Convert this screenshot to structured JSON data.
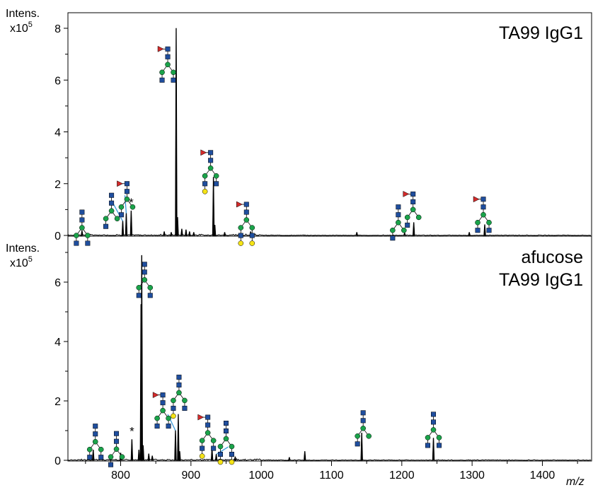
{
  "colors": {
    "trace": "#000000",
    "glcnac_blue": "#1f4e9e",
    "mannose_green": "#1aa34a",
    "galactose_yellow": "#f5e316",
    "fucose_red": "#d42a2a",
    "leader_line": "#3a9ad9"
  },
  "chart_data": [
    {
      "type": "line",
      "title": "TA99 IgG1",
      "ylabel": "Intens.",
      "yunit": "x10",
      "yunit_exp": "5",
      "xlim": [
        725,
        1470
      ],
      "ylim": [
        0,
        8.0
      ],
      "yticks": [
        0,
        2,
        4,
        6,
        8
      ],
      "peaks": [
        {
          "x": 745,
          "y": 0.18
        },
        {
          "x": 803,
          "y": 0.55
        },
        {
          "x": 808,
          "y": 0.85
        },
        {
          "x": 815,
          "y": 0.95
        },
        {
          "x": 862,
          "y": 0.15
        },
        {
          "x": 872,
          "y": 0.12
        },
        {
          "x": 879,
          "y": 8.0
        },
        {
          "x": 881,
          "y": 0.7
        },
        {
          "x": 887,
          "y": 0.25
        },
        {
          "x": 893,
          "y": 0.22
        },
        {
          "x": 898,
          "y": 0.15
        },
        {
          "x": 904,
          "y": 0.12
        },
        {
          "x": 932,
          "y": 2.25
        },
        {
          "x": 934,
          "y": 0.4
        },
        {
          "x": 948,
          "y": 0.12
        },
        {
          "x": 985,
          "y": 0.15
        },
        {
          "x": 1136,
          "y": 0.12
        },
        {
          "x": 1204,
          "y": 0.1
        },
        {
          "x": 1217,
          "y": 0.5
        },
        {
          "x": 1296,
          "y": 0.12
        },
        {
          "x": 1318,
          "y": 0.42
        }
      ],
      "annotations": [
        {
          "text": "*",
          "x": 815
        }
      ]
    },
    {
      "type": "line",
      "title": "afucose\nTA99 IgG1",
      "ylabel": "Intens.",
      "yunit": "x10",
      "yunit_exp": "5",
      "xlim": [
        725,
        1470
      ],
      "ylim": [
        0,
        7.0
      ],
      "yticks": [
        0,
        2,
        4,
        6
      ],
      "peaks": [
        {
          "x": 761,
          "y": 0.35
        },
        {
          "x": 800,
          "y": 0.25
        },
        {
          "x": 816,
          "y": 0.7
        },
        {
          "x": 826,
          "y": 0.35
        },
        {
          "x": 829,
          "y": 5.25
        },
        {
          "x": 830,
          "y": 6.9
        },
        {
          "x": 832,
          "y": 0.5
        },
        {
          "x": 840,
          "y": 0.22
        },
        {
          "x": 845,
          "y": 0.15
        },
        {
          "x": 878,
          "y": 1.0
        },
        {
          "x": 882,
          "y": 1.55
        },
        {
          "x": 884,
          "y": 0.3
        },
        {
          "x": 930,
          "y": 0.4
        },
        {
          "x": 936,
          "y": 0.2
        },
        {
          "x": 963,
          "y": 0.12
        },
        {
          "x": 1040,
          "y": 0.1
        },
        {
          "x": 1062,
          "y": 0.3
        },
        {
          "x": 1143,
          "y": 0.92
        },
        {
          "x": 1245,
          "y": 0.75
        }
      ],
      "annotations": [
        {
          "text": "*",
          "x": 816
        }
      ]
    }
  ],
  "xaxis": {
    "label": "m/z",
    "ticks": [
      800,
      900,
      1000,
      1100,
      1200,
      1300,
      1400
    ]
  },
  "glycan_icons": [
    {
      "panel": 0,
      "x": 745,
      "y": 0.9,
      "structure": "G0"
    },
    {
      "panel": 0,
      "x": 787,
      "y": 1.55,
      "structure": "G0-GlcNAc"
    },
    {
      "panel": 0,
      "x": 809,
      "y": 2.0,
      "structure": "G0F-GlcNAc"
    },
    {
      "panel": 0,
      "x": 867,
      "y": 7.2,
      "structure": "G0F"
    },
    {
      "panel": 0,
      "x": 928,
      "y": 3.2,
      "structure": "G1F"
    },
    {
      "panel": 0,
      "x": 979,
      "y": 1.2,
      "structure": "G2F"
    },
    {
      "panel": 0,
      "x": 1195,
      "y": 1.1,
      "structure": "G0-GlcNAc"
    },
    {
      "panel": 0,
      "x": 1216,
      "y": 1.6,
      "structure": "G0F-GlcNAc"
    },
    {
      "panel": 0,
      "x": 1316,
      "y": 1.4,
      "structure": "G0F"
    },
    {
      "panel": 1,
      "x": 764,
      "y": 1.15,
      "structure": "G0"
    },
    {
      "panel": 1,
      "x": 794,
      "y": 0.9,
      "structure": "G0-GlcNAc"
    },
    {
      "panel": 1,
      "x": 834,
      "y": 6.6,
      "structure": "G0"
    },
    {
      "panel": 1,
      "x": 860,
      "y": 2.2,
      "structure": "G0F"
    },
    {
      "panel": 1,
      "x": 883,
      "y": 2.8,
      "structure": "G1"
    },
    {
      "panel": 1,
      "x": 924,
      "y": 1.45,
      "structure": "G1F"
    },
    {
      "panel": 1,
      "x": 950,
      "y": 1.25,
      "structure": "G2"
    },
    {
      "panel": 1,
      "x": 1145,
      "y": 1.6,
      "structure": "G0-GlcNAc"
    },
    {
      "panel": 1,
      "x": 1245,
      "y": 1.55,
      "structure": "G0"
    }
  ]
}
